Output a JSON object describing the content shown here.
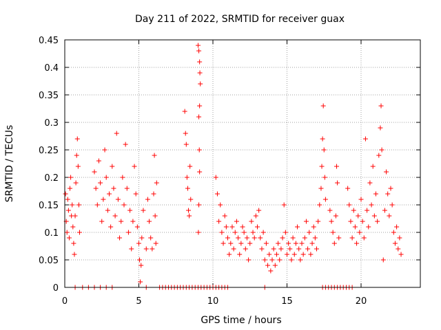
{
  "chart_data": {
    "type": "scatter",
    "title": "Day 211 of 2022, SRMTID for receiver guax",
    "xlabel": "GPS time / hours",
    "ylabel": "SRMTID / TECUs",
    "xlim": [
      0,
      24
    ],
    "ylim": [
      0,
      0.45
    ],
    "xticks": [
      0,
      5,
      10,
      15,
      20
    ],
    "xtick_labels": [
      "0",
      "5",
      "10",
      "15",
      "20"
    ],
    "yticks": [
      0,
      0.05,
      0.1,
      0.15,
      0.2,
      0.25,
      0.3,
      0.35,
      0.4,
      0.45
    ],
    "ytick_labels": [
      "0",
      "0.05",
      "0.1",
      "0.15",
      "0.2",
      "0.25",
      "0.3",
      "0.35",
      "0.4",
      "0.45"
    ],
    "grid": true,
    "marker": "+",
    "color": "#ff0000",
    "series": [
      {
        "name": "SRMTID",
        "points": [
          [
            0.05,
            0.17
          ],
          [
            0.1,
            0.12
          ],
          [
            0.15,
            0.1
          ],
          [
            0.2,
            0.16
          ],
          [
            0.25,
            0.14
          ],
          [
            0.3,
            0.09
          ],
          [
            0.35,
            0.18
          ],
          [
            0.4,
            0.2
          ],
          [
            0.45,
            0.13
          ],
          [
            0.5,
            0.15
          ],
          [
            0.55,
            0.11
          ],
          [
            0.6,
            0.08
          ],
          [
            0.65,
            0.06
          ],
          [
            0.7,
            0.13
          ],
          [
            0.75,
            0.19
          ],
          [
            0.8,
            0.24
          ],
          [
            0.85,
            0.27
          ],
          [
            0.9,
            0.22
          ],
          [
            0.95,
            0.15
          ],
          [
            1.0,
            0.1
          ],
          [
            2.0,
            0.21
          ],
          [
            2.1,
            0.18
          ],
          [
            2.2,
            0.15
          ],
          [
            2.3,
            0.23
          ],
          [
            2.4,
            0.19
          ],
          [
            2.5,
            0.12
          ],
          [
            2.6,
            0.16
          ],
          [
            2.7,
            0.25
          ],
          [
            2.8,
            0.2
          ],
          [
            2.9,
            0.14
          ],
          [
            3.0,
            0.17
          ],
          [
            3.1,
            0.11
          ],
          [
            3.2,
            0.22
          ],
          [
            3.3,
            0.18
          ],
          [
            3.4,
            0.13
          ],
          [
            3.5,
            0.28
          ],
          [
            3.6,
            0.16
          ],
          [
            3.7,
            0.09
          ],
          [
            3.8,
            0.12
          ],
          [
            3.9,
            0.2
          ],
          [
            4.0,
            0.15
          ],
          [
            4.1,
            0.26
          ],
          [
            4.2,
            0.18
          ],
          [
            4.3,
            0.1
          ],
          [
            4.4,
            0.14
          ],
          [
            4.5,
            0.07
          ],
          [
            4.6,
            0.12
          ],
          [
            4.7,
            0.22
          ],
          [
            4.8,
            0.17
          ],
          [
            4.9,
            0.11
          ],
          [
            5.0,
            0.08
          ],
          [
            5.05,
            0.05
          ],
          [
            5.1,
            0.01
          ],
          [
            5.15,
            0.04
          ],
          [
            5.2,
            0.09
          ],
          [
            5.3,
            0.14
          ],
          [
            5.5,
            0.07
          ],
          [
            5.6,
            0.16
          ],
          [
            5.7,
            0.12
          ],
          [
            5.8,
            0.09
          ],
          [
            5.9,
            0.07
          ],
          [
            6.0,
            0.17
          ],
          [
            6.05,
            0.24
          ],
          [
            6.1,
            0.13
          ],
          [
            6.15,
            0.08
          ],
          [
            6.2,
            0.19
          ],
          [
            8.1,
            0.32
          ],
          [
            8.15,
            0.28
          ],
          [
            8.2,
            0.26
          ],
          [
            8.25,
            0.2
          ],
          [
            8.3,
            0.18
          ],
          [
            8.35,
            0.14
          ],
          [
            8.4,
            0.13
          ],
          [
            8.45,
            0.22
          ],
          [
            8.5,
            0.16
          ],
          [
            9.0,
            0.44
          ],
          [
            9.05,
            0.43
          ],
          [
            9.1,
            0.41
          ],
          [
            9.12,
            0.39
          ],
          [
            9.15,
            0.37
          ],
          [
            9.1,
            0.33
          ],
          [
            9.05,
            0.31
          ],
          [
            9.08,
            0.25
          ],
          [
            9.1,
            0.21
          ],
          [
            9.05,
            0.15
          ],
          [
            9.02,
            0.1
          ],
          [
            10.2,
            0.2
          ],
          [
            10.3,
            0.17
          ],
          [
            10.4,
            0.12
          ],
          [
            10.5,
            0.15
          ],
          [
            10.6,
            0.1
          ],
          [
            10.7,
            0.08
          ],
          [
            10.8,
            0.13
          ],
          [
            10.9,
            0.11
          ],
          [
            11.0,
            0.09
          ],
          [
            11.1,
            0.06
          ],
          [
            11.2,
            0.08
          ],
          [
            11.3,
            0.11
          ],
          [
            11.4,
            0.07
          ],
          [
            11.5,
            0.1
          ],
          [
            11.6,
            0.12
          ],
          [
            11.7,
            0.09
          ],
          [
            11.8,
            0.06
          ],
          [
            11.9,
            0.08
          ],
          [
            12.0,
            0.11
          ],
          [
            12.1,
            0.1
          ],
          [
            12.2,
            0.07
          ],
          [
            12.3,
            0.09
          ],
          [
            12.4,
            0.05
          ],
          [
            12.5,
            0.08
          ],
          [
            12.6,
            0.12
          ],
          [
            12.7,
            0.1
          ],
          [
            12.8,
            0.09
          ],
          [
            12.9,
            0.13
          ],
          [
            13.0,
            0.11
          ],
          [
            13.1,
            0.14
          ],
          [
            13.2,
            0.09
          ],
          [
            13.3,
            0.07
          ],
          [
            13.4,
            0.1
          ],
          [
            13.5,
            0.05
          ],
          [
            13.6,
            0.08
          ],
          [
            13.7,
            0.04
          ],
          [
            13.8,
            0.06
          ],
          [
            13.9,
            0.03
          ],
          [
            14.0,
            0.05
          ],
          [
            14.1,
            0.07
          ],
          [
            14.2,
            0.04
          ],
          [
            14.3,
            0.06
          ],
          [
            14.4,
            0.08
          ],
          [
            14.5,
            0.05
          ],
          [
            14.6,
            0.07
          ],
          [
            14.7,
            0.09
          ],
          [
            14.8,
            0.15
          ],
          [
            14.9,
            0.1
          ],
          [
            15.0,
            0.06
          ],
          [
            15.1,
            0.08
          ],
          [
            15.2,
            0.07
          ],
          [
            15.3,
            0.05
          ],
          [
            15.4,
            0.09
          ],
          [
            15.5,
            0.06
          ],
          [
            15.6,
            0.08
          ],
          [
            15.7,
            0.11
          ],
          [
            15.8,
            0.07
          ],
          [
            15.9,
            0.05
          ],
          [
            16.0,
            0.08
          ],
          [
            16.1,
            0.06
          ],
          [
            16.2,
            0.09
          ],
          [
            16.3,
            0.12
          ],
          [
            16.4,
            0.07
          ],
          [
            16.5,
            0.1
          ],
          [
            16.6,
            0.06
          ],
          [
            16.7,
            0.08
          ],
          [
            16.8,
            0.11
          ],
          [
            16.9,
            0.09
          ],
          [
            17.0,
            0.07
          ],
          [
            17.1,
            0.12
          ],
          [
            17.2,
            0.15
          ],
          [
            17.3,
            0.18
          ],
          [
            17.35,
            0.22
          ],
          [
            17.4,
            0.27
          ],
          [
            17.45,
            0.33
          ],
          [
            17.5,
            0.25
          ],
          [
            17.55,
            0.2
          ],
          [
            17.6,
            0.16
          ],
          [
            17.9,
            0.14
          ],
          [
            18.0,
            0.12
          ],
          [
            18.1,
            0.1
          ],
          [
            18.2,
            0.08
          ],
          [
            18.3,
            0.13
          ],
          [
            18.35,
            0.22
          ],
          [
            18.4,
            0.19
          ],
          [
            18.5,
            0.09
          ],
          [
            19.1,
            0.18
          ],
          [
            19.2,
            0.15
          ],
          [
            19.3,
            0.12
          ],
          [
            19.4,
            0.09
          ],
          [
            19.5,
            0.14
          ],
          [
            19.6,
            0.11
          ],
          [
            19.7,
            0.08
          ],
          [
            19.8,
            0.13
          ],
          [
            19.9,
            0.1
          ],
          [
            20.0,
            0.16
          ],
          [
            20.1,
            0.12
          ],
          [
            20.2,
            0.09
          ],
          [
            20.3,
            0.27
          ],
          [
            20.4,
            0.14
          ],
          [
            20.5,
            0.11
          ],
          [
            20.6,
            0.19
          ],
          [
            20.7,
            0.15
          ],
          [
            20.8,
            0.22
          ],
          [
            20.9,
            0.13
          ],
          [
            21.0,
            0.17
          ],
          [
            21.1,
            0.12
          ],
          [
            21.2,
            0.24
          ],
          [
            21.3,
            0.29
          ],
          [
            21.35,
            0.33
          ],
          [
            21.4,
            0.25
          ],
          [
            21.5,
            0.05
          ],
          [
            21.6,
            0.14
          ],
          [
            21.7,
            0.21
          ],
          [
            21.8,
            0.17
          ],
          [
            21.9,
            0.13
          ],
          [
            22.0,
            0.18
          ],
          [
            22.1,
            0.15
          ],
          [
            22.2,
            0.1
          ],
          [
            22.3,
            0.08
          ],
          [
            22.4,
            0.11
          ],
          [
            22.5,
            0.07
          ],
          [
            22.6,
            0.09
          ],
          [
            22.7,
            0.06
          ],
          [
            0.7,
            0.0
          ],
          [
            1.2,
            0.0
          ],
          [
            1.6,
            0.0
          ],
          [
            2.0,
            0.0
          ],
          [
            2.4,
            0.0
          ],
          [
            2.8,
            0.0
          ],
          [
            3.2,
            0.0
          ],
          [
            5.5,
            0.0
          ],
          [
            6.4,
            0.0
          ],
          [
            6.6,
            0.0
          ],
          [
            6.8,
            0.0
          ],
          [
            7.0,
            0.0
          ],
          [
            7.2,
            0.0
          ],
          [
            7.4,
            0.0
          ],
          [
            7.6,
            0.0
          ],
          [
            7.8,
            0.0
          ],
          [
            8.0,
            0.0
          ],
          [
            8.2,
            0.0
          ],
          [
            8.4,
            0.0
          ],
          [
            8.6,
            0.0
          ],
          [
            8.8,
            0.0
          ],
          [
            9.0,
            0.0
          ],
          [
            9.2,
            0.0
          ],
          [
            9.4,
            0.0
          ],
          [
            9.6,
            0.0
          ],
          [
            9.8,
            0.0
          ],
          [
            10.0,
            0.0
          ],
          [
            10.2,
            0.0
          ],
          [
            10.4,
            0.0
          ],
          [
            10.6,
            0.0
          ],
          [
            10.8,
            0.0
          ],
          [
            11.0,
            0.0
          ],
          [
            13.5,
            0.0
          ],
          [
            17.4,
            0.0
          ],
          [
            17.6,
            0.0
          ],
          [
            17.8,
            0.0
          ],
          [
            18.0,
            0.0
          ],
          [
            18.2,
            0.0
          ],
          [
            18.4,
            0.0
          ],
          [
            18.6,
            0.0
          ],
          [
            18.8,
            0.0
          ],
          [
            19.0,
            0.0
          ],
          [
            19.2,
            0.0
          ],
          [
            19.4,
            0.0
          ]
        ]
      }
    ]
  }
}
